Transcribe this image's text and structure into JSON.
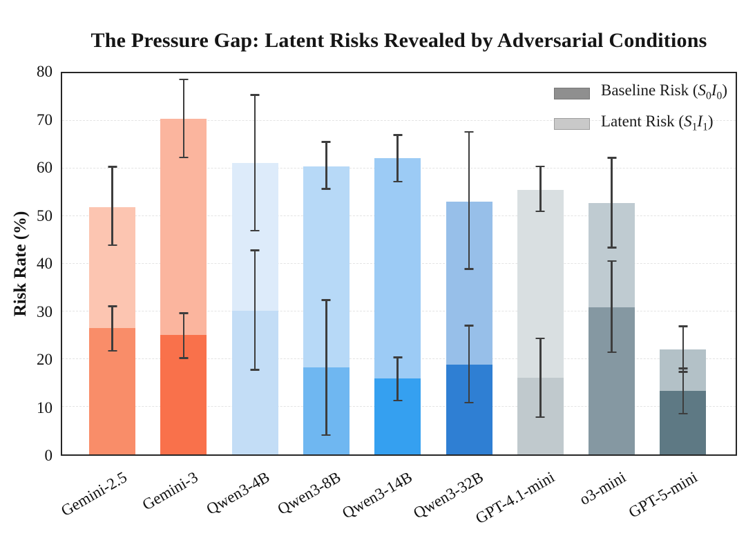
{
  "legend": {
    "items": [
      {
        "open": "Baseline Risk (",
        "vars": [
          {
            "sym": "S",
            "sub": "0"
          },
          {
            "sym": "I",
            "sub": "0"
          }
        ],
        "close": ")",
        "color": "#8f8f8f",
        "border": "#767676"
      },
      {
        "open": "Latent Risk (",
        "vars": [
          {
            "sym": "S",
            "sub": "1"
          },
          {
            "sym": "I",
            "sub": "1"
          }
        ],
        "close": ")",
        "color": "#c9c9c9",
        "border": "#9e9e9e"
      }
    ]
  },
  "chart_data": {
    "type": "bar",
    "title": "The Pressure Gap: Latent Risks Revealed by Adversarial Conditions",
    "xlabel": "",
    "ylabel": "Risk Rate (%)",
    "ylim": [
      0,
      80
    ],
    "yticks": [
      0,
      10,
      20,
      30,
      40,
      50,
      60,
      70,
      80
    ],
    "grid": "horizontal-dashed",
    "legend_position": "top-right-inside",
    "bar_style": "overlaid (latent full-height behind, baseline solid in front), error bars on both",
    "categories": [
      "Gemini-2.5",
      "Gemini-3",
      "Qwen3-4B",
      "Qwen3-8B",
      "Qwen3-14B",
      "Qwen3-32B",
      "GPT-4.1-mini",
      "o3-mini",
      "GPT-5-mini"
    ],
    "series": [
      {
        "name": "Baseline Risk (S0I0)",
        "values": [
          26.5,
          25.1,
          30.2,
          18.2,
          16.0,
          18.9,
          16.1,
          30.8,
          13.3
        ],
        "err_low": [
          21.7,
          20.2,
          17.7,
          4.0,
          11.3,
          10.8,
          7.8,
          21.4,
          8.5
        ],
        "err_high": [
          31.1,
          29.7,
          42.9,
          32.4,
          20.4,
          27.1,
          24.4,
          40.6,
          18.1
        ],
        "colors": [
          "#F98D69",
          "#F9714B",
          "#C3DDF6",
          "#6FB7F1",
          "#35A0F0",
          "#2F7FD3",
          "#C0C9CD",
          "#8598A2",
          "#5E7984"
        ]
      },
      {
        "name": "Latent Risk (S1I1)",
        "values": [
          51.9,
          70.4,
          61.2,
          60.4,
          62.2,
          53.0,
          55.5,
          52.8,
          22.0
        ],
        "err_low": [
          43.9,
          62.3,
          46.9,
          55.7,
          57.2,
          38.9,
          51.0,
          43.4,
          17.3
        ],
        "err_high": [
          60.4,
          78.7,
          75.5,
          65.6,
          67.1,
          67.7,
          60.5,
          62.3,
          26.9
        ],
        "colors": [
          "#FCC5B1",
          "#FBB59E",
          "#DDEBFA",
          "#B7D9F7",
          "#9CCBF5",
          "#97BFE9",
          "#D9DFE1",
          "#BFCBD1",
          "#B3C1C7"
        ]
      }
    ]
  }
}
